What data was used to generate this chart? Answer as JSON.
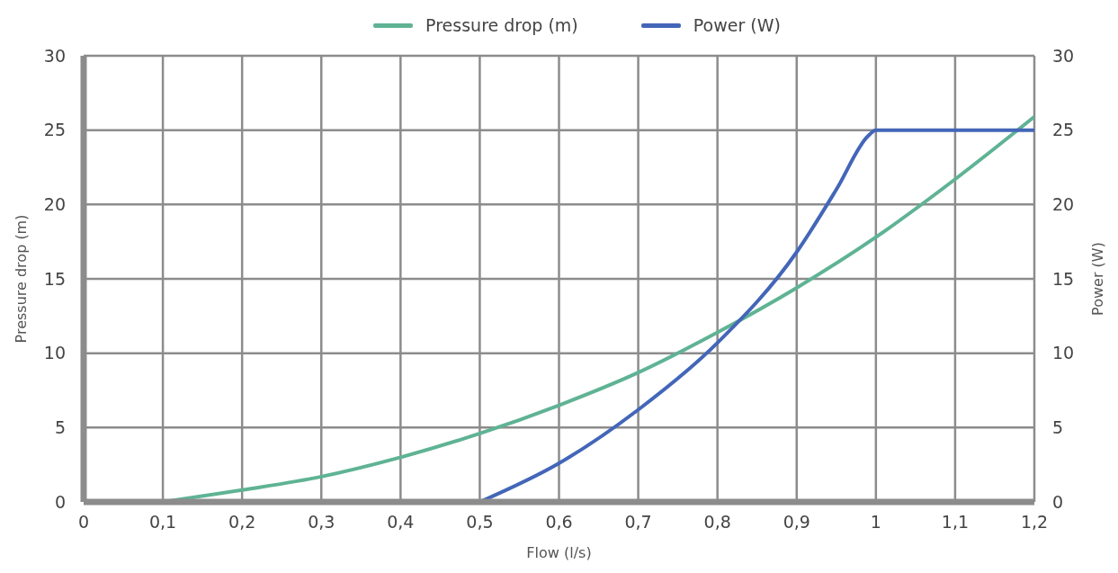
{
  "chart_data": {
    "type": "line",
    "xlabel": "Flow  (l/s)",
    "ylabel": "Pressure drop (m)",
    "y2label": "Power (W)",
    "series": [
      {
        "name": "Pressure drop (m)",
        "color": "#5fb394",
        "x": [
          0.1,
          0.2,
          0.3,
          0.4,
          0.5,
          0.6,
          0.7,
          0.8,
          0.9,
          1.0,
          1.1,
          1.2
        ],
        "values": [
          0,
          0.8,
          1.7,
          3,
          4.6,
          6.5,
          8.7,
          11.4,
          14.4,
          17.8,
          21.7,
          25.9
        ]
      },
      {
        "name": "Power (W)",
        "color": "#4366b8",
        "axis": "y2",
        "x": [
          0.5,
          0.6,
          0.7,
          0.8,
          0.9,
          0.95,
          0.99,
          1.0,
          1.2
        ],
        "values": [
          0,
          2.6,
          6.2,
          10.7,
          16.8,
          21,
          24.6,
          25,
          25
        ]
      }
    ],
    "xlim": [
      0,
      1.2
    ],
    "xticks": [
      0,
      {
        "value": 0.1,
        "label": "0,1"
      },
      {
        "value": 0.2,
        "label": "0,2"
      },
      {
        "value": 0.3,
        "label": "0,3"
      },
      {
        "value": 0.4,
        "label": "0,4"
      },
      {
        "value": 0.5,
        "label": "0,5"
      },
      {
        "value": 0.6,
        "label": "0,6"
      },
      {
        "value": 0.7,
        "label": "0,7"
      },
      {
        "value": 0.8,
        "label": "0,8"
      },
      {
        "value": 0.9,
        "label": "0,9"
      },
      1,
      {
        "value": 1.1,
        "label": "1,1"
      },
      {
        "value": 1.2,
        "label": "1,2"
      }
    ],
    "ylim": [
      0,
      30
    ],
    "yticks": [
      0,
      5,
      10,
      15,
      20,
      25,
      30
    ],
    "y2lim": [
      0,
      30
    ],
    "y2ticks": [
      0,
      5,
      10,
      15,
      20,
      25,
      30
    ],
    "grid": true,
    "legend": "top",
    "marker": "none",
    "line_style": "solid"
  }
}
